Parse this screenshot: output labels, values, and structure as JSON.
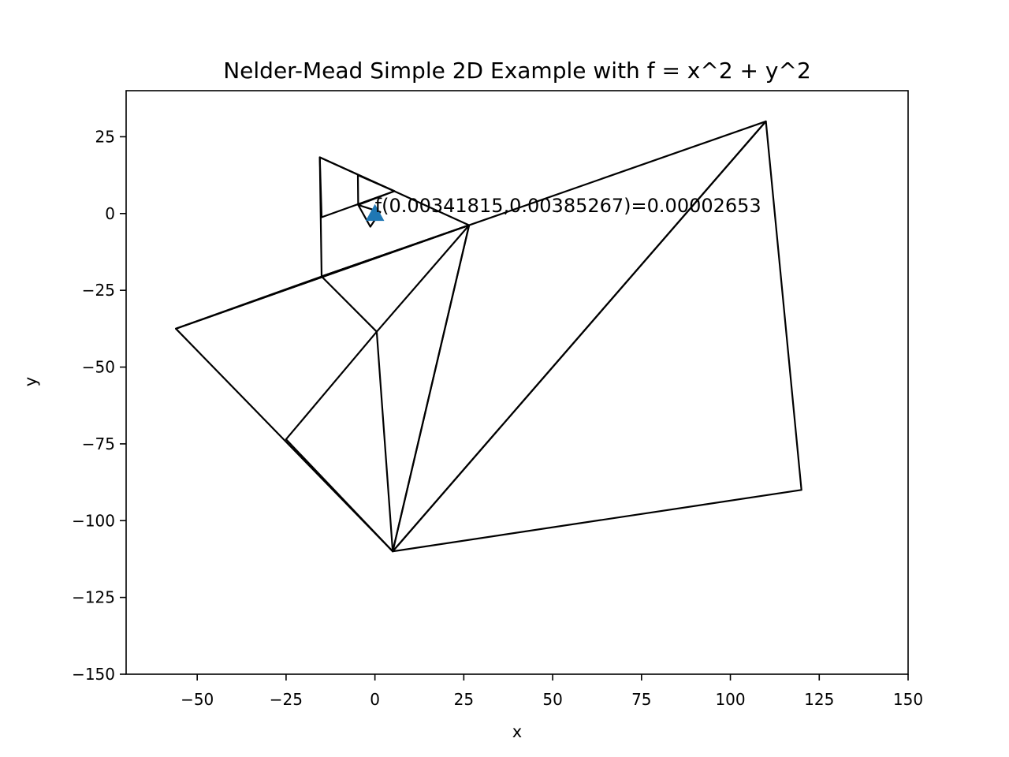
{
  "chart_data": {
    "type": "line",
    "title": "Nelder-Mead Simple 2D Example with f = x^2 + y^2",
    "xlabel": "x",
    "ylabel": "y",
    "xlim": [
      -70,
      150
    ],
    "ylim": [
      -150,
      40
    ],
    "xticks": [
      "−50",
      "−25",
      "0",
      "25",
      "50",
      "75",
      "100",
      "125",
      "150"
    ],
    "xtick_values": [
      -50,
      -25,
      0,
      25,
      50,
      75,
      100,
      125,
      150
    ],
    "yticks": [
      "−150",
      "−125",
      "−100",
      "−75",
      "−50",
      "−25",
      "0",
      "25"
    ],
    "ytick_values": [
      -150,
      -125,
      -100,
      -75,
      -50,
      -25,
      0,
      25
    ],
    "grid": false,
    "line_color": "#000000",
    "marker_color": "#1f77b4",
    "simplices": [
      [
        [
          110,
          30
        ],
        [
          120,
          -90
        ],
        [
          5,
          -110
        ]
      ],
      [
        [
          110,
          30
        ],
        [
          5,
          -110
        ],
        [
          26.5,
          -3.8
        ]
      ],
      [
        [
          5,
          -110
        ],
        [
          26.5,
          -3.8
        ],
        [
          -56,
          -37.5
        ]
      ],
      [
        [
          26.5,
          -3.8
        ],
        [
          -56,
          -37.5
        ],
        [
          -15,
          -20.5
        ]
      ],
      [
        [
          26.5,
          -3.8
        ],
        [
          -15,
          -20.5
        ],
        [
          0.5,
          -38.5
        ]
      ],
      [
        [
          5,
          -110
        ],
        [
          -25,
          -73.5
        ],
        [
          0.5,
          -38.5
        ]
      ],
      [
        [
          26.5,
          -3.8
        ],
        [
          -15,
          -20.5
        ],
        [
          -15.5,
          18.3
        ]
      ],
      [
        [
          -15.5,
          18.3
        ],
        [
          5.5,
          7.3
        ],
        [
          -15,
          -1.2
        ]
      ],
      [
        [
          -4.8,
          12.5
        ],
        [
          5.5,
          7.3
        ],
        [
          -4.7,
          2.8
        ]
      ],
      [
        [
          -4.7,
          2.8
        ],
        [
          -1.3,
          -4.3
        ],
        [
          1.5,
          0.5
        ]
      ]
    ],
    "final_point": {
      "x": 0.00341815,
      "y": 0.00385267,
      "marker": "triangle-up"
    },
    "annotation": {
      "text": "f(0.00341815,0.00385267)=0.00002653",
      "x": 0,
      "y": 0
    }
  }
}
